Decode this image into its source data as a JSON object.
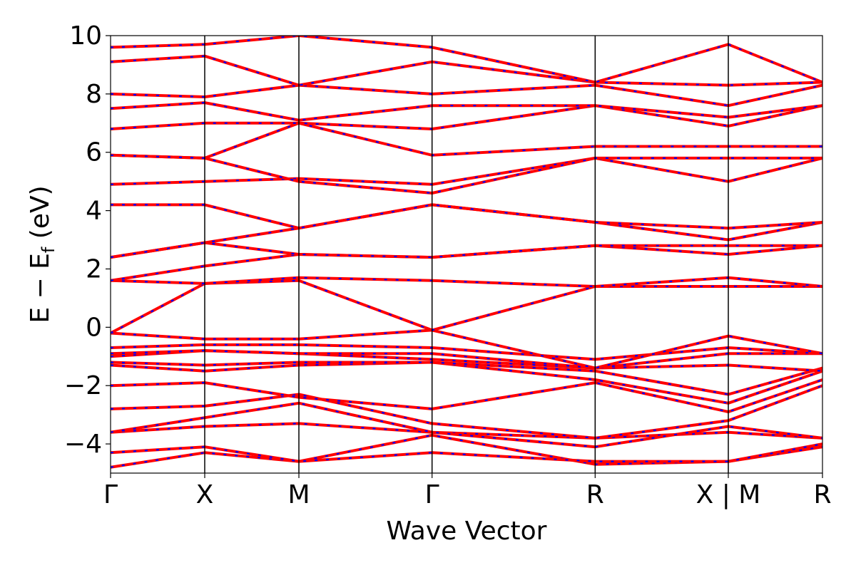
{
  "chart_data": {
    "type": "line",
    "xlabel": "Wave Vector",
    "ylabel_parts": [
      "E − E",
      "f",
      " (eV)"
    ],
    "ylim": [
      -5,
      10
    ],
    "y_ticks": [
      {
        "value": 10,
        "label": "10"
      },
      {
        "value": 8,
        "label": "8"
      },
      {
        "value": 6,
        "label": "6"
      },
      {
        "value": 4,
        "label": "4"
      },
      {
        "value": 2,
        "label": "2"
      },
      {
        "value": 0,
        "label": "0"
      },
      {
        "value": -2,
        "label": "−2"
      },
      {
        "value": -4,
        "label": "−4"
      }
    ],
    "k_path": [
      {
        "label": "Γ",
        "k": 0.0
      },
      {
        "label": "X",
        "k": 0.5
      },
      {
        "label": "M",
        "k": 1.0
      },
      {
        "label": "Γ",
        "k": 1.7071
      },
      {
        "label": "R",
        "k": 2.5731
      },
      {
        "label": "X | M",
        "k": 3.2802
      },
      {
        "label": "R",
        "k": 3.7802
      }
    ],
    "xlim": [
      0,
      3.7802
    ],
    "series_colors": {
      "primary": "#ff0000",
      "overlay": "#0000ff"
    },
    "bands": {
      "segment_bounds": [
        0.0,
        0.5,
        1.0,
        1.7071,
        2.5731,
        3.2802,
        3.7802
      ],
      "values": [
        [
          -4.8,
          -4.3,
          -4.6,
          -3.7,
          -4.7,
          -4.6,
          -4.1
        ],
        [
          -4.3,
          -4.1,
          -4.6,
          -4.3,
          -4.6,
          -4.6,
          -4.0
        ],
        [
          -3.6,
          -3.4,
          -3.3,
          -3.6,
          -3.8,
          -3.6,
          -3.8
        ],
        [
          -3.6,
          -3.1,
          -2.6,
          -3.6,
          -4.1,
          -3.4,
          -3.8
        ],
        [
          -2.8,
          -2.7,
          -2.3,
          -3.3,
          -3.8,
          -3.2,
          -2.0
        ],
        [
          -2.0,
          -1.9,
          -2.4,
          -2.8,
          -1.9,
          -2.9,
          -1.8
        ],
        [
          -1.3,
          -1.5,
          -1.3,
          -1.2,
          -1.8,
          -2.6,
          -1.5
        ],
        [
          -1.2,
          -1.3,
          -1.2,
          -1.2,
          -1.5,
          -2.3,
          -1.4
        ],
        [
          -1.0,
          -0.8,
          -0.9,
          -1.1,
          -1.4,
          -1.3,
          -1.5
        ],
        [
          -0.9,
          -0.8,
          -0.9,
          -0.9,
          -1.4,
          -0.9,
          -0.9
        ],
        [
          -0.7,
          -0.6,
          -0.6,
          -0.7,
          -1.1,
          -0.7,
          -0.9
        ],
        [
          -0.2,
          -0.4,
          -0.4,
          -0.1,
          -1.4,
          -0.3,
          -0.9
        ],
        [
          -0.2,
          1.5,
          1.6,
          -0.1,
          1.4,
          1.4,
          1.4
        ],
        [
          1.6,
          1.5,
          1.7,
          1.6,
          1.4,
          1.7,
          1.4
        ],
        [
          1.6,
          2.1,
          2.5,
          2.4,
          2.8,
          2.5,
          2.8
        ],
        [
          2.4,
          2.9,
          2.5,
          2.4,
          2.8,
          2.8,
          2.8
        ],
        [
          2.4,
          2.9,
          3.4,
          4.2,
          3.6,
          3.0,
          3.6
        ],
        [
          4.2,
          4.2,
          3.4,
          4.2,
          3.6,
          3.4,
          3.6
        ],
        [
          4.9,
          5.0,
          5.1,
          4.9,
          5.8,
          5.0,
          5.8
        ],
        [
          5.9,
          5.8,
          5.0,
          4.6,
          5.8,
          5.8,
          5.8
        ],
        [
          5.9,
          5.8,
          7.0,
          5.9,
          6.2,
          6.2,
          6.2
        ],
        [
          6.8,
          7.0,
          7.0,
          6.8,
          7.6,
          6.9,
          7.6
        ],
        [
          7.5,
          7.7,
          7.1,
          7.6,
          7.6,
          7.2,
          7.6
        ],
        [
          8.0,
          7.9,
          8.3,
          8.0,
          8.3,
          7.6,
          8.3
        ],
        [
          9.1,
          9.3,
          8.3,
          9.1,
          8.4,
          8.3,
          8.4
        ],
        [
          9.6,
          9.7,
          10.0,
          9.6,
          8.4,
          9.7,
          8.4
        ]
      ]
    }
  }
}
